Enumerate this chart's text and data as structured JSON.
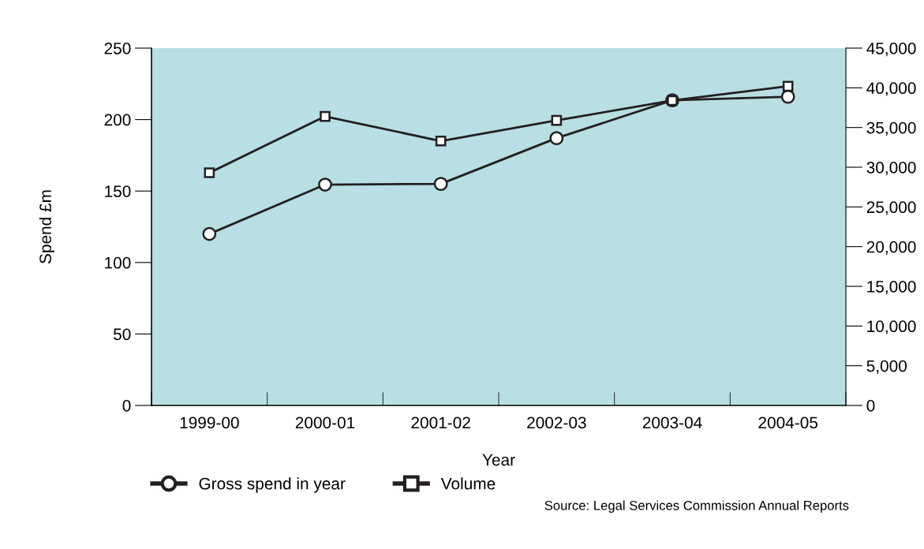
{
  "chart_data": {
    "type": "line",
    "xlabel": "Year",
    "ylabel": "Spend £m",
    "categories": [
      "1999-00",
      "2000-01",
      "2001-02",
      "2002-03",
      "2003-04",
      "2004-05"
    ],
    "series": [
      {
        "name": "Gross spend in year",
        "color": "#231f20",
        "marker": "circle",
        "values": [
          120,
          154.5,
          155,
          187,
          213.5,
          216
        ]
      },
      {
        "name": "Volume",
        "color": "#231f20",
        "marker": "square",
        "axis": "y2",
        "values": [
          29300,
          36400,
          33300,
          35900,
          38400,
          40200
        ]
      }
    ],
    "ylim": [
      0,
      250
    ],
    "yticks": [
      0,
      50,
      100,
      150,
      200,
      250
    ],
    "y2lim": [
      0,
      45000
    ],
    "y2ticks": [
      {
        "value": 0,
        "label": "0"
      },
      {
        "value": 5000,
        "label": "5,000"
      },
      {
        "value": 10000,
        "label": "10,000"
      },
      {
        "value": 15000,
        "label": "15,000"
      },
      {
        "value": 20000,
        "label": "20,000"
      },
      {
        "value": 25000,
        "label": "25,000"
      },
      {
        "value": 30000,
        "label": "30,000"
      },
      {
        "value": 35000,
        "label": "35,000"
      },
      {
        "value": 40000,
        "label": "40,000"
      },
      {
        "value": 45000,
        "label": "45,000"
      }
    ],
    "grid": false,
    "legend": "bottom left",
    "line_style": "solid",
    "annotations": [
      "Source: Legal Services Commission Annual Reports"
    ]
  }
}
